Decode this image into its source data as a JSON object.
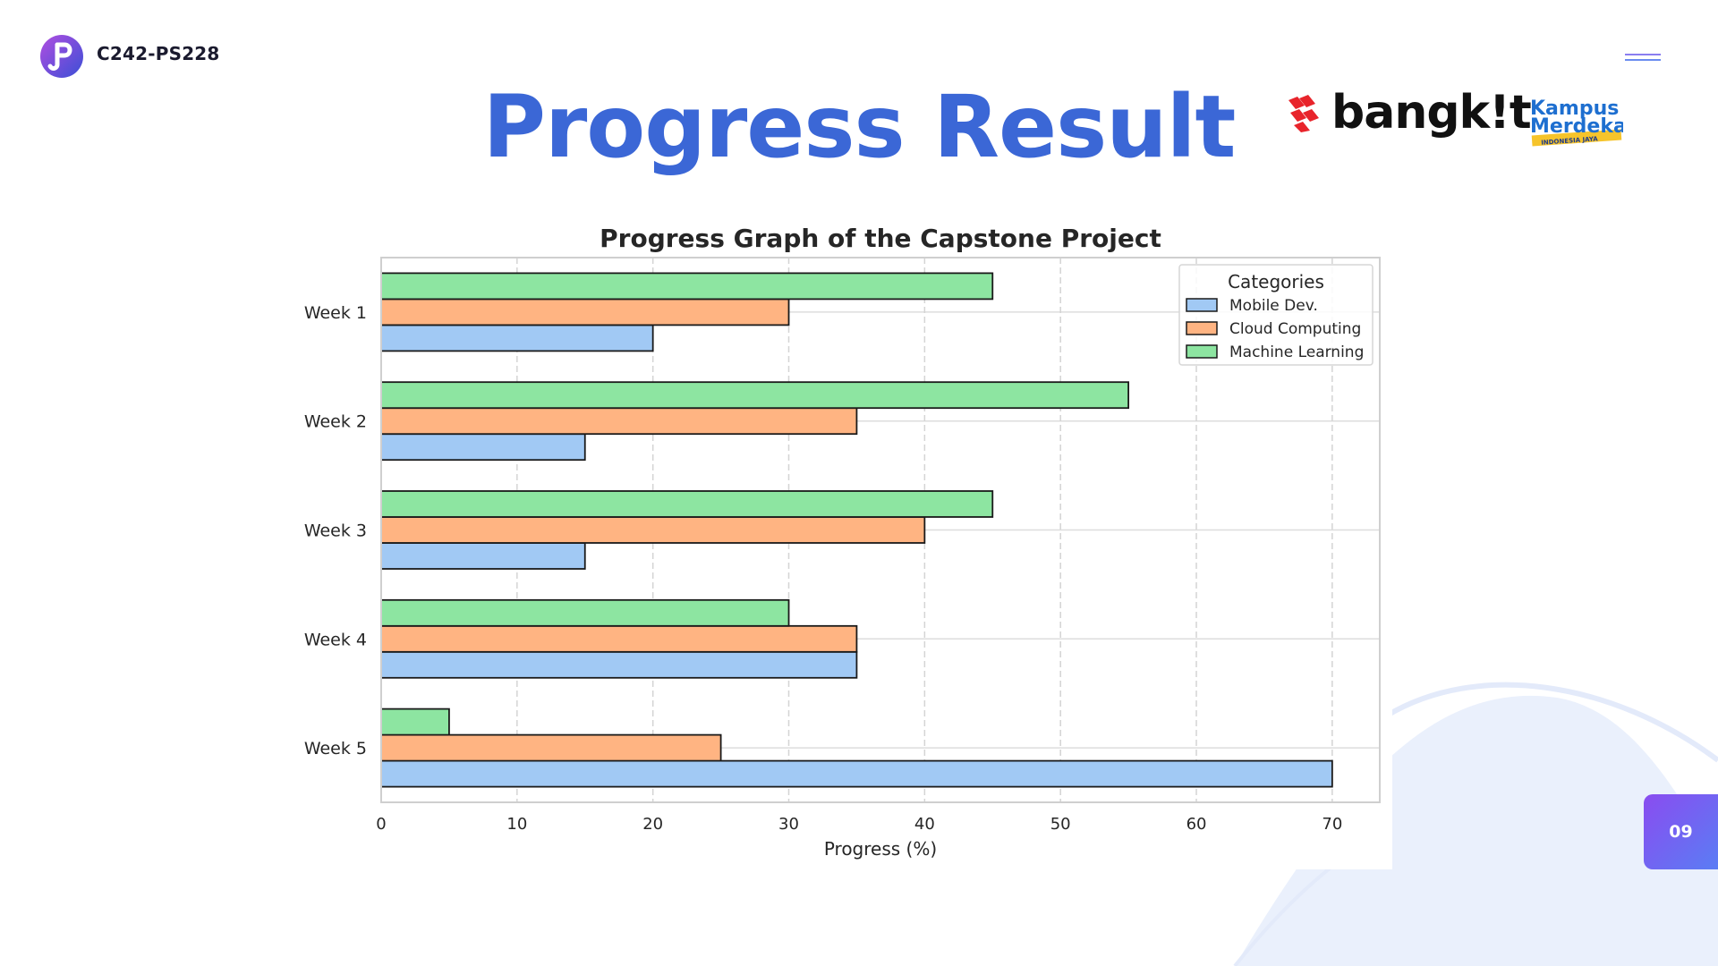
{
  "header": {
    "team_code": "C242-PS228",
    "page_title": "Progress Result",
    "bangkit_label": "bangk!t",
    "kampus_label_top": "Kampus",
    "kampus_label_bottom": "Merdeka",
    "kampus_tagline": "INDONESIA JAYA"
  },
  "page_number": "09",
  "colors": {
    "title": "#3b67d6",
    "mobile": "#a1c9f4",
    "cloud": "#ffb482",
    "ml": "#8de5a1",
    "bangkit_red": "#e8242b",
    "badge_start": "#8a4cf0",
    "badge_end": "#5a7df4"
  },
  "icons": {
    "team_logo": "team-logo-icon",
    "menu": "hamburger-menu-icon",
    "bangkit": "bangkit-logo-icon",
    "kampus": "kampus-merdeka-logo"
  },
  "chart_data": {
    "type": "bar",
    "orientation": "horizontal",
    "title": "Progress Graph of the Capstone Project",
    "xlabel": "Progress (%)",
    "ylabel": "",
    "categories": [
      "Week 1",
      "Week 2",
      "Week 3",
      "Week 4",
      "Week 5"
    ],
    "series": [
      {
        "name": "Mobile Dev.",
        "values": [
          20,
          15,
          15,
          35,
          70
        ]
      },
      {
        "name": "Cloud Computing",
        "values": [
          30,
          35,
          40,
          35,
          25
        ]
      },
      {
        "name": "Machine Learning",
        "values": [
          45,
          55,
          45,
          30,
          5
        ]
      }
    ],
    "xlim": [
      0,
      73.5
    ],
    "xticks": [
      0,
      10,
      20,
      30,
      40,
      50,
      60,
      70
    ],
    "grid": true,
    "legend": {
      "title": "Categories",
      "placement": "top-right"
    }
  }
}
